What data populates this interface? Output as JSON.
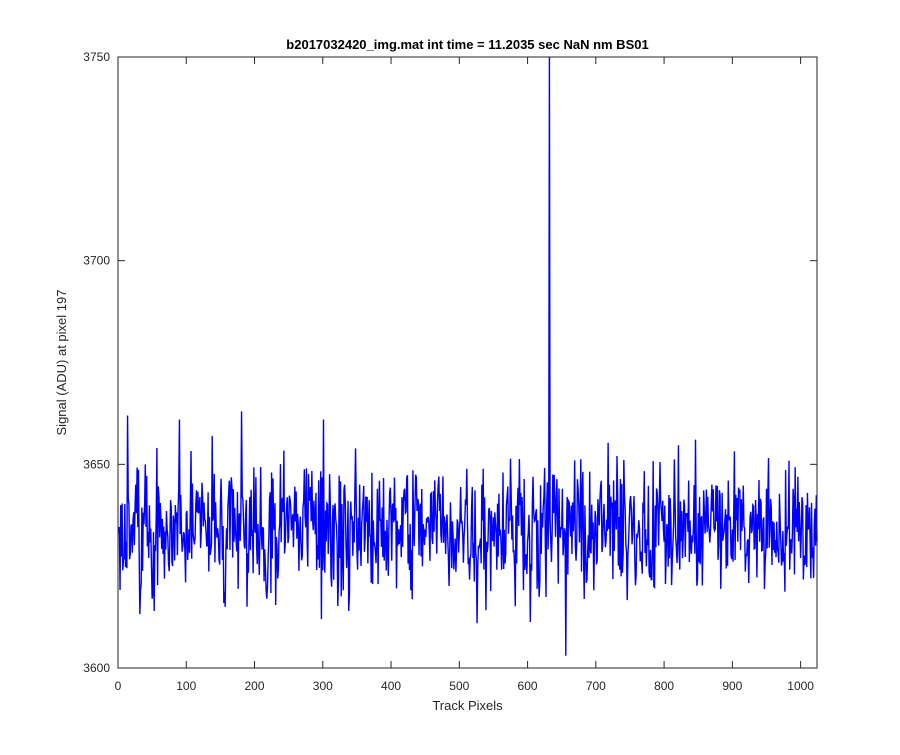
{
  "chart_data": {
    "type": "line",
    "title": "b2017032420_img.mat int time = 11.2035 sec  NaN nm BS01",
    "xlabel": "Track Pixels",
    "ylabel": "Signal (ADU) at pixel 197",
    "xlim": [
      0,
      1024
    ],
    "ylim": [
      3600,
      3750
    ],
    "x_ticks": [
      0,
      100,
      200,
      300,
      400,
      500,
      600,
      700,
      800,
      900,
      1000
    ],
    "y_ticks": [
      3600,
      3650,
      3700,
      3750
    ],
    "x_tick_labels": [
      "0",
      "100",
      "200",
      "300",
      "400",
      "500",
      "600",
      "700",
      "800",
      "900",
      "1000"
    ],
    "y_tick_labels": [
      "3600",
      "3650",
      "3700",
      "3750"
    ],
    "grid": false,
    "line_color": "#0000ff",
    "series": [
      {
        "x_start": 1,
        "x_step": 1,
        "noise_mean": 3634,
        "noise_amplitude": 8,
        "points": [
          [
            1,
            3633
          ],
          [
            4,
            3640
          ],
          [
            7,
            3624
          ],
          [
            12,
            3631
          ],
          [
            14,
            3662
          ],
          [
            18,
            3628
          ],
          [
            26,
            3645
          ],
          [
            33,
            3619
          ],
          [
            40,
            3650
          ],
          [
            45,
            3627
          ],
          [
            53,
            3614
          ],
          [
            60,
            3642
          ],
          [
            66,
            3628
          ],
          [
            72,
            3634
          ],
          [
            80,
            3625
          ],
          [
            84,
            3640
          ],
          [
            90,
            3661
          ],
          [
            95,
            3630
          ],
          [
            100,
            3638
          ],
          [
            110,
            3633
          ],
          [
            120,
            3642
          ],
          [
            130,
            3630
          ],
          [
            138,
            3657
          ],
          [
            145,
            3632
          ],
          [
            150,
            3640
          ],
          [
            157,
            3615
          ],
          [
            163,
            3646
          ],
          [
            170,
            3631
          ],
          [
            178,
            3638
          ],
          [
            181,
            3663
          ],
          [
            185,
            3630
          ],
          [
            193,
            3642
          ],
          [
            200,
            3635
          ],
          [
            210,
            3633
          ],
          [
            218,
            3617
          ],
          [
            225,
            3648
          ],
          [
            233,
            3630
          ],
          [
            240,
            3641
          ],
          [
            250,
            3632
          ],
          [
            258,
            3638
          ],
          [
            268,
            3631
          ],
          [
            276,
            3649
          ],
          [
            283,
            3636
          ],
          [
            290,
            3643
          ],
          [
            298,
            3612
          ],
          [
            301,
            3661
          ],
          [
            305,
            3631
          ],
          [
            315,
            3640
          ],
          [
            325,
            3627
          ],
          [
            332,
            3645
          ],
          [
            338,
            3614
          ],
          [
            345,
            3636
          ],
          [
            355,
            3631
          ],
          [
            365,
            3642
          ],
          [
            375,
            3630
          ],
          [
            383,
            3646
          ],
          [
            392,
            3633
          ],
          [
            400,
            3637
          ],
          [
            410,
            3630
          ],
          [
            420,
            3644
          ],
          [
            430,
            3629
          ],
          [
            440,
            3641
          ],
          [
            450,
            3634
          ],
          [
            460,
            3632
          ],
          [
            470,
            3647
          ],
          [
            480,
            3628
          ],
          [
            490,
            3636
          ],
          [
            500,
            3633
          ],
          [
            510,
            3640
          ],
          [
            520,
            3627
          ],
          [
            526,
            3611
          ],
          [
            533,
            3645
          ],
          [
            540,
            3631
          ],
          [
            550,
            3637
          ],
          [
            560,
            3634
          ],
          [
            570,
            3642
          ],
          [
            580,
            3629
          ],
          [
            590,
            3643
          ],
          [
            600,
            3631
          ],
          [
            610,
            3636
          ],
          [
            620,
            3628
          ],
          [
            628,
            3640
          ],
          [
            632,
            3752
          ],
          [
            636,
            3633
          ],
          [
            640,
            3640
          ],
          [
            648,
            3632
          ],
          [
            656,
            3603
          ],
          [
            660,
            3641
          ],
          [
            670,
            3630
          ],
          [
            680,
            3643
          ],
          [
            690,
            3627
          ],
          [
            700,
            3637
          ],
          [
            710,
            3630
          ],
          [
            720,
            3645
          ],
          [
            730,
            3634
          ],
          [
            740,
            3628
          ],
          [
            750,
            3641
          ],
          [
            760,
            3633
          ],
          [
            770,
            3638
          ],
          [
            780,
            3629
          ],
          [
            790,
            3643
          ],
          [
            800,
            3631
          ],
          [
            810,
            3636
          ],
          [
            820,
            3632
          ],
          [
            830,
            3640
          ],
          [
            840,
            3628
          ],
          [
            850,
            3638
          ],
          [
            860,
            3633
          ],
          [
            870,
            3645
          ],
          [
            880,
            3630
          ],
          [
            890,
            3639
          ],
          [
            900,
            3634
          ],
          [
            910,
            3643
          ],
          [
            920,
            3628
          ],
          [
            930,
            3640
          ],
          [
            940,
            3631
          ],
          [
            950,
            3644
          ],
          [
            960,
            3629
          ],
          [
            970,
            3636
          ],
          [
            980,
            3633
          ],
          [
            990,
            3641
          ],
          [
            1000,
            3627
          ],
          [
            1008,
            3640
          ],
          [
            1015,
            3622
          ],
          [
            1020,
            3635
          ],
          [
            1024,
            3631
          ]
        ]
      }
    ]
  }
}
